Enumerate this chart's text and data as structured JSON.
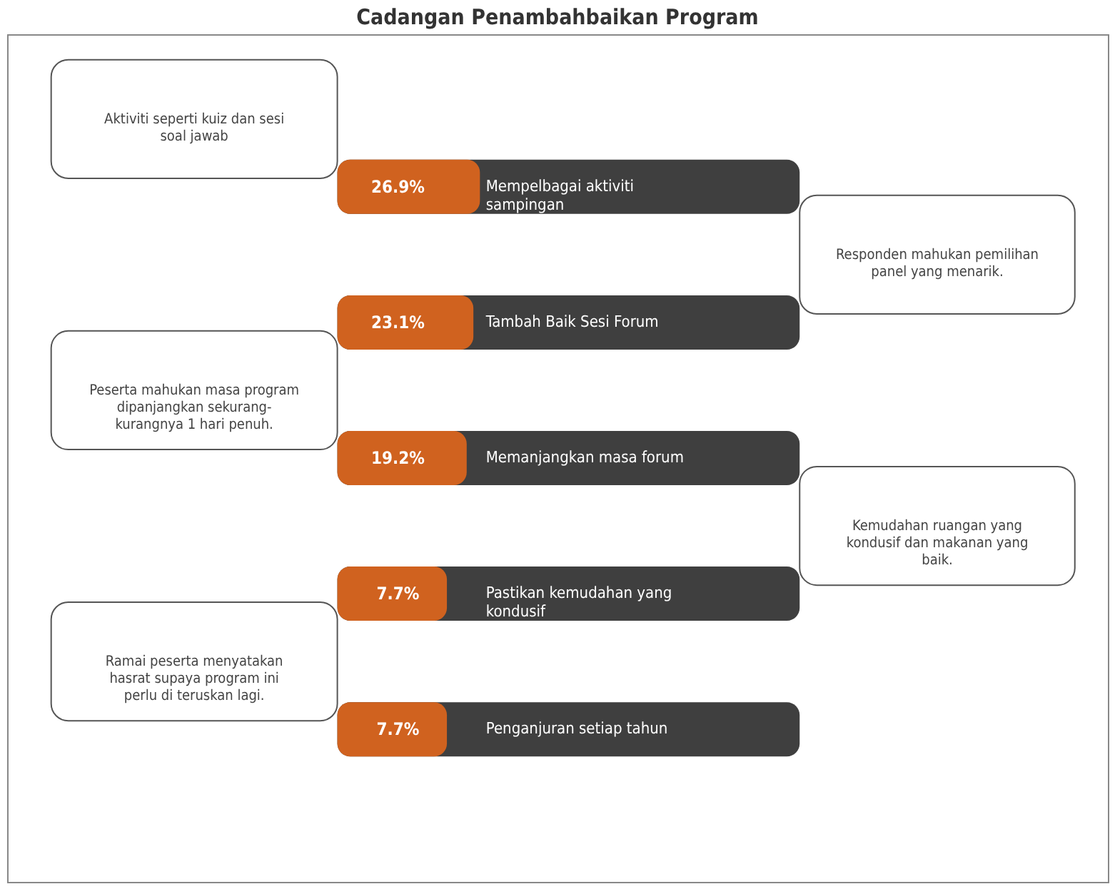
{
  "chart_data": {
    "type": "other",
    "title": "Cadangan Penambahbaikan Program",
    "categories": [
      "Mempelbagai aktiviti sampingan",
      "Tambah Baik Sesi Forum",
      "Memanjangkan masa forum",
      "Pastikan kemudahan yang kondusif",
      "Penganjuran setiap tahun"
    ],
    "values": [
      26.9,
      23.1,
      19.2,
      7.7,
      7.7
    ],
    "value_labels": [
      "26.9%",
      "23.1%",
      "19.2%",
      "7.7%",
      "7.7%"
    ],
    "annotations": [
      "Aktiviti seperti kuiz dan sesi soal jawab",
      "Responden mahukan pemilihan panel yang menarik.",
      "Peserta mahukan masa program dipanjangkan sekurang-kurangnya 1 hari penuh.",
      "Kemudahan ruangan yang kondusif dan makanan yang baik.",
      "Ramai peserta menyatakan hasrat supaya program ini perlu di  teruskan lagi."
    ]
  }
}
